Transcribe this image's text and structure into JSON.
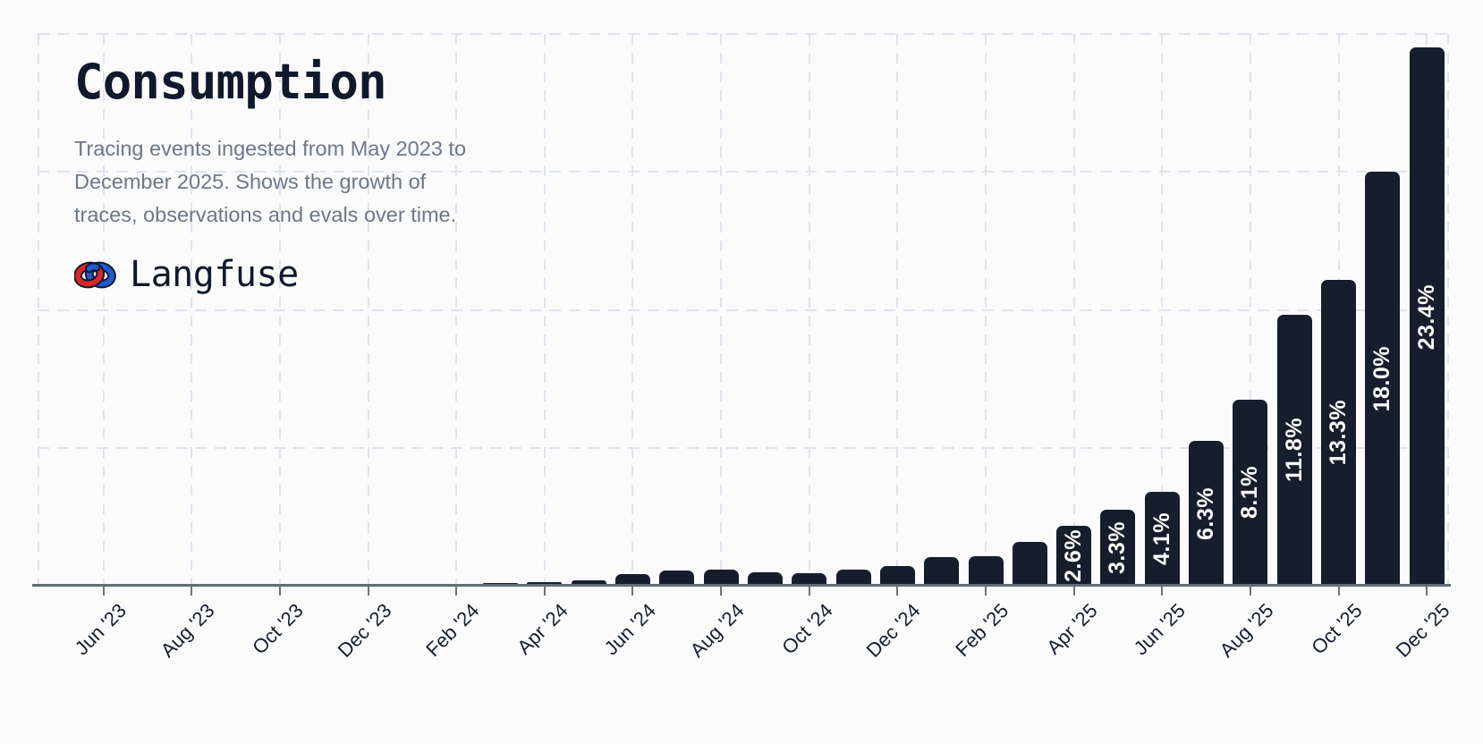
{
  "header": {
    "title": "Consumption",
    "subtitle_lines": [
      "Tracing events ingested from May 2023 to",
      "December 2025. Shows the growth of",
      "traces, observations and evals over time."
    ],
    "brand": "Langfuse"
  },
  "colors": {
    "background": "#fbfbfc",
    "bar": "#161e2e",
    "bar_label": "#ffffff",
    "grid": "#dfe3ee",
    "axis": "#636a78",
    "text_dark": "#10192b",
    "text_muted": "#6e7787",
    "logo_red": "#dd2429",
    "logo_blue": "#2158d4",
    "logo_outline": "#10192b"
  },
  "chart_data": {
    "type": "bar",
    "title": "Consumption",
    "x": [
      "May '23",
      "Jun '23",
      "Jul '23",
      "Aug '23",
      "Sep '23",
      "Oct '23",
      "Nov '23",
      "Dec '23",
      "Jan '24",
      "Feb '24",
      "Mar '24",
      "Apr '24",
      "May '24",
      "Jun '24",
      "Jul '24",
      "Aug '24",
      "Sep '24",
      "Oct '24",
      "Nov '24",
      "Dec '24",
      "Jan '25",
      "Feb '25",
      "Mar '25",
      "Apr '25",
      "May '25",
      "Jun '25",
      "Jul '25",
      "Aug '25",
      "Sep '25",
      "Oct '25",
      "Nov '25",
      "Dec '25"
    ],
    "values": [
      0,
      0,
      0.01,
      0.01,
      0.01,
      0.02,
      0.02,
      0.02,
      0.03,
      0.04,
      0.1,
      0.15,
      0.25,
      0.5,
      0.65,
      0.7,
      0.6,
      0.55,
      0.7,
      0.85,
      1.25,
      1.3,
      1.9,
      2.6,
      3.3,
      4.1,
      6.3,
      8.1,
      11.8,
      13.3,
      18,
      23.4
    ],
    "bar_labels": [
      "",
      "",
      "",
      "",
      "",
      "",
      "",
      "",
      "",
      "",
      "",
      "",
      "",
      "",
      "",
      "",
      "",
      "",
      "",
      "",
      "",
      "",
      "",
      "2.6%",
      "3.3%",
      "4.1%",
      "6.3%",
      "8.1%",
      "11.8%",
      "13.3%",
      "18.0%",
      "23.4%"
    ],
    "unit": "%",
    "xticks": [
      "Jun '23",
      "Aug '23",
      "Oct '23",
      "Dec '23",
      "Feb '24",
      "Apr '24",
      "Jun '24",
      "Aug '24",
      "Oct '24",
      "Dec '24",
      "Feb '25",
      "Apr '25",
      "Jun '25",
      "Aug '25",
      "Oct '25",
      "Dec '25"
    ],
    "xticks_every": 2,
    "xticks_start_index": 1,
    "ylim": [
      0,
      24
    ],
    "ygrid_step": 6,
    "grid": "dashed",
    "legend": false
  }
}
